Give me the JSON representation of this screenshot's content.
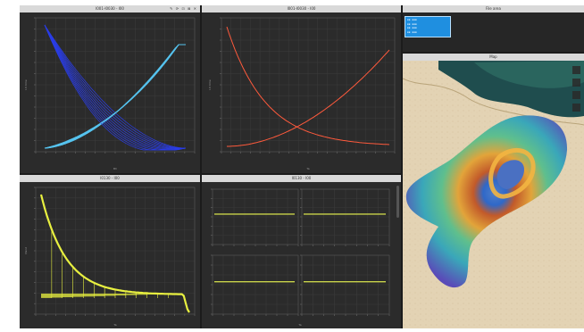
{
  "panels": {
    "top_left": {
      "title": "I001-I0030 - I00",
      "icons": "✎ ⟳ ⊡ ⊠ ✕",
      "xlabel": "Bh",
      "ylabel": "I-V time"
    },
    "top_mid": {
      "title": "I001-I0030 - I00",
      "xlabel": "Ta",
      "ylabel": "I-V time"
    },
    "top_right": {
      "title": "File area"
    },
    "map": {
      "title": "Map"
    },
    "bottom_left": {
      "title": "I0130 - I00",
      "xlabel": "Ta",
      "ylabel": "I/Gnd"
    },
    "bottom_mid": {
      "title": "I0130 - I00",
      "xlabel": "Ta"
    }
  },
  "colors": {
    "panel_bg": "#2b2b2b",
    "titlebar_bg": "#d9d9d9",
    "blue_series": "#2a3de8",
    "cyan_series": "#56c3ee",
    "red_series": "#ff5a3c",
    "yellow_series": "#e8f040",
    "olive_series": "#c9d34a",
    "file_tile": "#1f8fe0"
  },
  "file_tile": {
    "lines": [
      "▪▪ ▪▪▪",
      "▪▪ ▪▪▪",
      "▪▪ ▪▪▪",
      "▪▪ ▪▪▪"
    ]
  },
  "map_icons": [
    "layers-icon",
    "zoom-in-icon",
    "zoom-out-icon",
    "info-icon"
  ]
}
